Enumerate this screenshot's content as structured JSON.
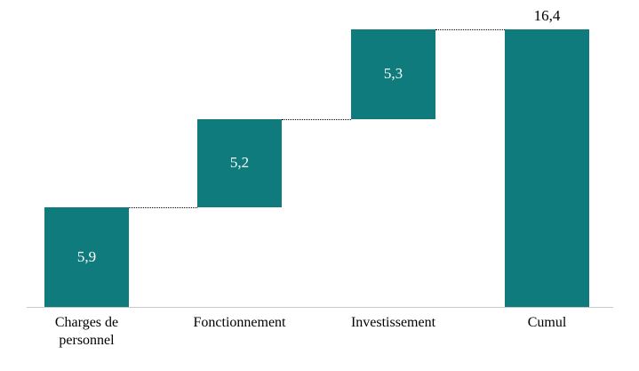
{
  "chart_data": {
    "type": "bar",
    "subtype": "waterfall",
    "title": "",
    "categories": [
      "Charges de\npersonnel",
      "Fonctionnement",
      "Investissement",
      "Cumul"
    ],
    "values": [
      5.9,
      5.2,
      5.3,
      16.4
    ],
    "value_labels": [
      "5,9",
      "5,2",
      "5,3",
      "16,4"
    ],
    "is_total": [
      false,
      false,
      false,
      true
    ],
    "label_position": [
      "inside",
      "inside",
      "inside",
      "above"
    ],
    "connector_style": "dotted",
    "grid": false,
    "legend": "none",
    "ylim": [
      0,
      16.4
    ],
    "colors": {
      "bar": "#0f7b7c",
      "inside_label": "#ffffff",
      "outside_label": "#000000",
      "connector": "#000000",
      "axis": "#c9c9c9"
    }
  }
}
